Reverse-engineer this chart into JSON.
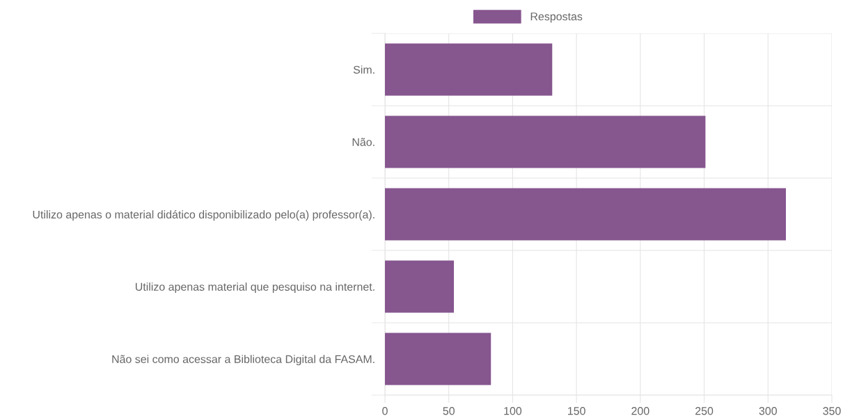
{
  "chart_data": {
    "type": "bar",
    "orientation": "horizontal",
    "categories": [
      "Sim.",
      "Não.",
      "Utilizo apenas o material didático disponibilizado pelo(a) professor(a).",
      "Utilizo apenas material que pesquiso na internet.",
      "Não sei como acessar a Biblioteca Digital da FASAM."
    ],
    "series": [
      {
        "name": "Respostas",
        "color": "#86568f",
        "values": [
          131,
          251,
          314,
          54,
          83
        ]
      }
    ],
    "xlim": [
      0,
      350
    ],
    "xticks": [
      0,
      50,
      100,
      150,
      200,
      250,
      300,
      350
    ],
    "grid": true,
    "legend": "top"
  }
}
